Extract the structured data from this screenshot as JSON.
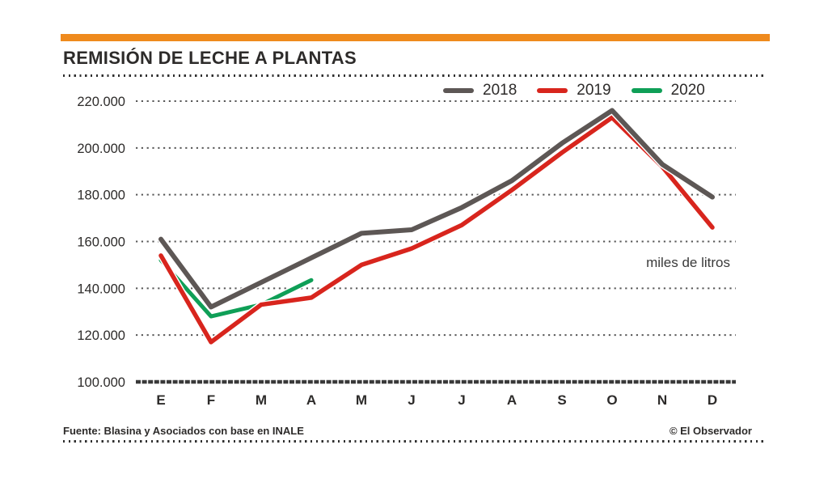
{
  "page": {
    "background_color": "#ffffff",
    "accent_bar_color": "#ef8a1d"
  },
  "header": {
    "title": "REMISIÓN DE LECHE A PLANTAS"
  },
  "chart_data": {
    "type": "line",
    "title": "REMISIÓN DE LECHE A PLANTAS",
    "unit_annotation": "miles de litros",
    "categories": [
      "E",
      "F",
      "M",
      "A",
      "M",
      "J",
      "J",
      "A",
      "S",
      "O",
      "N",
      "D"
    ],
    "ylim": [
      100000,
      220000
    ],
    "yticks": [
      220000,
      200000,
      180000,
      160000,
      140000,
      120000,
      100000
    ],
    "ytick_labels": [
      "220.000",
      "200.000",
      "180.000",
      "160.000",
      "140.000",
      "120.000",
      "100.000"
    ],
    "grid": "horizontal-dotted",
    "legend_position": "top-right",
    "series": [
      {
        "name": "2018",
        "color": "#5d5755",
        "values": [
          161000,
          132000,
          142500,
          153000,
          163500,
          165000,
          174500,
          186000,
          202000,
          216000,
          193000,
          179000
        ]
      },
      {
        "name": "2019",
        "color": "#d8251d",
        "values": [
          154000,
          117000,
          133000,
          136000,
          150000,
          157000,
          167000,
          182000,
          198000,
          213000,
          192000,
          166000
        ]
      },
      {
        "name": "2020",
        "color": "#0f9f57",
        "values": [
          152000,
          128000,
          133000,
          143500
        ]
      }
    ]
  },
  "footer": {
    "source": "Fuente: Blasina y Asociados con base en INALE",
    "credit": "© El Observador"
  }
}
